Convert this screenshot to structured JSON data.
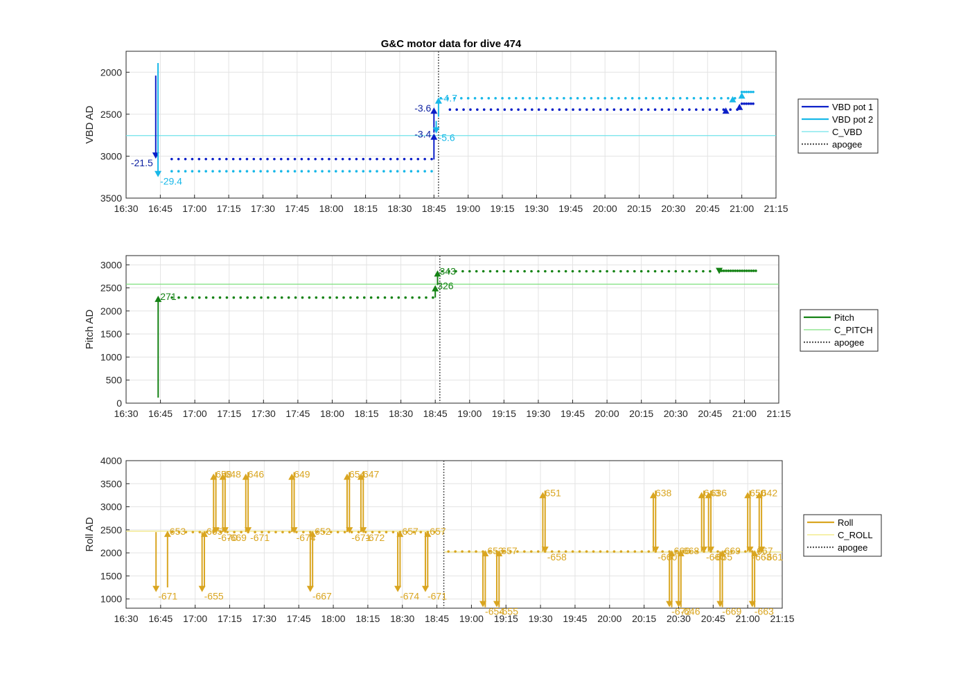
{
  "title": "G&C motor data for dive 474",
  "colors": {
    "vbd1": "#0b1fc8",
    "vbd2": "#18b8e8",
    "c_vbd": "#6fe3ea",
    "pitch": "#148214",
    "c_pitch": "#7ee07e",
    "roll": "#d9a520",
    "c_roll": "#f0e678",
    "apogee": "#555555"
  },
  "chart_data": [
    {
      "type": "line",
      "xlabel": "",
      "ylabel": "VBD AD",
      "xticks": [
        "16:30",
        "16:45",
        "17:00",
        "17:15",
        "17:30",
        "17:45",
        "18:00",
        "18:15",
        "18:30",
        "18:45",
        "19:00",
        "19:15",
        "19:30",
        "19:45",
        "20:00",
        "20:15",
        "20:30",
        "20:45",
        "21:00",
        "21:15"
      ],
      "xlim": [
        "16:30",
        "21:15"
      ],
      "yticks": [
        "2000",
        "2500",
        "3000",
        "3500"
      ],
      "ylim": [
        1750,
        3500
      ],
      "y_reversed": true,
      "grid": true,
      "legend_placement": "outside-right",
      "legend": [
        "VBD pot 1",
        "VBD pot 2",
        "C_VBD",
        "apogee"
      ],
      "apogee": "18:47",
      "reference": {
        "name": "C_VBD",
        "value": 2755
      },
      "series": [
        {
          "name": "VBD pot 1",
          "start": "16:50",
          "end": "18:45",
          "value": 3035,
          "step": 3
        },
        {
          "name": "VBD pot 1",
          "start": "18:52",
          "end": "20:58",
          "value": 2445,
          "step": 3
        },
        {
          "name": "VBD pot 1",
          "start": "21:00",
          "end": "21:05",
          "value": 2375,
          "step": 1
        },
        {
          "name": "VBD pot 2",
          "start": "16:50",
          "end": "18:45",
          "value": 3180,
          "step": 3
        },
        {
          "name": "VBD pot 2",
          "start": "18:48",
          "end": "20:58",
          "value": 2310,
          "step": 3
        },
        {
          "name": "VBD pot 2",
          "start": "21:00",
          "end": "21:05",
          "value": 2235,
          "step": 1
        }
      ],
      "moves": [
        {
          "series": "VBD pot 1",
          "t": "16:43",
          "from": 2040,
          "to": 3030,
          "label": "-21.5",
          "label_side": "left"
        },
        {
          "series": "VBD pot 2",
          "t": "16:44",
          "from": 1890,
          "to": 3250,
          "label": "-29.4",
          "label_side": "right"
        },
        {
          "series": "VBD pot 1",
          "t": "18:45",
          "from": 3040,
          "to": 2730,
          "label": "-3.4",
          "label_side": "left"
        },
        {
          "series": "VBD pot 1",
          "t": "18:45",
          "from": 2720,
          "to": 2420,
          "label": "-3.6",
          "label_side": "left"
        },
        {
          "series": "VBD pot 2",
          "t": "18:46",
          "from": 2580,
          "to": 2730,
          "label": "-5.6",
          "label_side": "right"
        },
        {
          "series": "VBD pot 2",
          "t": "18:47",
          "from": 2530,
          "to": 2300,
          "label": "-4.7",
          "label_side": "right"
        },
        {
          "series": "VBD pot 1",
          "t": "20:53",
          "from": 2445,
          "to": 2420,
          "label": "",
          "label_side": "right"
        },
        {
          "series": "VBD pot 2",
          "t": "20:56",
          "from": 2310,
          "to": 2285,
          "label": "",
          "label_side": "right"
        },
        {
          "series": "VBD pot 1",
          "t": "20:59",
          "from": 2420,
          "to": 2375,
          "label": "",
          "label_side": "right"
        },
        {
          "series": "VBD pot 2",
          "t": "21:00",
          "from": 2285,
          "to": 2240,
          "label": "",
          "label_side": "right"
        }
      ]
    },
    {
      "type": "line",
      "xlabel": "",
      "ylabel": "Pitch AD",
      "xticks": [
        "16:30",
        "16:45",
        "17:00",
        "17:15",
        "17:30",
        "17:45",
        "18:00",
        "18:15",
        "18:30",
        "18:45",
        "19:00",
        "19:15",
        "19:30",
        "19:45",
        "20:00",
        "20:15",
        "20:30",
        "20:45",
        "21:00",
        "21:15"
      ],
      "xlim": [
        "16:30",
        "21:15"
      ],
      "yticks": [
        "0",
        "500",
        "1000",
        "1500",
        "2000",
        "2500",
        "3000"
      ],
      "ylim": [
        0,
        3200
      ],
      "y_reversed": false,
      "grid": true,
      "legend_placement": "outside-right",
      "legend": [
        "Pitch",
        "C_PITCH",
        "apogee"
      ],
      "apogee": "18:47",
      "reference": {
        "name": "C_PITCH",
        "value": 2580
      },
      "series": [
        {
          "name": "Pitch",
          "start": "16:50",
          "end": "18:45",
          "value": 2290,
          "step": 3
        },
        {
          "name": "Pitch",
          "start": "18:48",
          "end": "20:47",
          "value": 2860,
          "step": 3
        },
        {
          "name": "Pitch",
          "start": "20:50",
          "end": "21:05",
          "value": 2870,
          "step": 1
        }
      ],
      "moves": [
        {
          "series": "Pitch",
          "t": "16:44",
          "from": 120,
          "to": 2330,
          "label": "271",
          "label_side": "right"
        },
        {
          "series": "Pitch",
          "t": "18:45",
          "from": 2290,
          "to": 2560,
          "label": "326",
          "label_side": "right"
        },
        {
          "series": "Pitch",
          "t": "18:46",
          "from": 2560,
          "to": 2880,
          "label": "343",
          "label_side": "right"
        },
        {
          "series": "Pitch",
          "t": "20:49",
          "from": 2900,
          "to": 2800,
          "label": "",
          "label_side": "right"
        }
      ]
    },
    {
      "type": "line",
      "xlabel": "",
      "ylabel": "Roll AD",
      "xticks": [
        "16:30",
        "16:45",
        "17:00",
        "17:15",
        "17:30",
        "17:45",
        "18:00",
        "18:15",
        "18:30",
        "18:45",
        "19:00",
        "19:15",
        "19:30",
        "19:45",
        "20:00",
        "20:15",
        "20:30",
        "20:45",
        "21:00",
        "21:15"
      ],
      "xlim": [
        "16:30",
        "21:15"
      ],
      "yticks": [
        "1000",
        "1500",
        "2000",
        "2500",
        "3000",
        "3500",
        "4000"
      ],
      "ylim": [
        800,
        4000
      ],
      "y_reversed": false,
      "grid": true,
      "legend_placement": "outside-right",
      "legend": [
        "Roll",
        "C_ROLL",
        "apogee"
      ],
      "apogee": "18:48",
      "references": [
        {
          "name": "C_ROLL",
          "start": "16:30",
          "end": "18:48",
          "value": 2470
        },
        {
          "name": "C_ROLL",
          "start": "18:48",
          "end": "21:15",
          "value": 2020
        }
      ],
      "series": [
        {
          "name": "Roll",
          "start": "16:50",
          "end": "18:45",
          "value": 2450,
          "step": 3
        },
        {
          "name": "Roll",
          "start": "18:50",
          "end": "21:05",
          "value": 2030,
          "step": 3
        }
      ],
      "moves": [
        {
          "t": "16:43",
          "from": 2450,
          "to": 1150,
          "label": "-671"
        },
        {
          "t": "16:48",
          "from": 1250,
          "to": 2480,
          "label": "653"
        },
        {
          "t": "17:03",
          "from": 2450,
          "to": 1150,
          "label": "-655"
        },
        {
          "t": "17:04",
          "from": 1250,
          "to": 2480,
          "label": "665"
        },
        {
          "t": "17:08",
          "from": 2450,
          "to": 3720,
          "label": "658"
        },
        {
          "t": "17:09",
          "from": 3750,
          "to": 2420,
          "label": "-670"
        },
        {
          "t": "17:12",
          "from": 2450,
          "to": 3720,
          "label": "648"
        },
        {
          "t": "17:13",
          "from": 3750,
          "to": 2420,
          "label": "-669"
        },
        {
          "t": "17:22",
          "from": 2450,
          "to": 3720,
          "label": "646"
        },
        {
          "t": "17:23",
          "from": 3750,
          "to": 2420,
          "label": "-671"
        },
        {
          "t": "17:42",
          "from": 2450,
          "to": 3720,
          "label": "649"
        },
        {
          "t": "17:43",
          "from": 3750,
          "to": 2420,
          "label": "-674"
        },
        {
          "t": "17:50",
          "from": 2450,
          "to": 1150,
          "label": "-667"
        },
        {
          "t": "17:51",
          "from": 1250,
          "to": 2480,
          "label": "652"
        },
        {
          "t": "18:06",
          "from": 2450,
          "to": 3720,
          "label": "654"
        },
        {
          "t": "18:07",
          "from": 3750,
          "to": 2420,
          "label": "-671"
        },
        {
          "t": "18:12",
          "from": 2450,
          "to": 3720,
          "label": "647"
        },
        {
          "t": "18:13",
          "from": 3750,
          "to": 2420,
          "label": "-672"
        },
        {
          "t": "18:28",
          "from": 2450,
          "to": 1150,
          "label": "-674"
        },
        {
          "t": "18:29",
          "from": 1250,
          "to": 2480,
          "label": "657"
        },
        {
          "t": "18:40",
          "from": 2450,
          "to": 1150,
          "label": "-671"
        },
        {
          "t": "18:41",
          "from": 1250,
          "to": 2480,
          "label": "657"
        },
        {
          "t": "19:05",
          "from": 2030,
          "to": 820,
          "label": "-654"
        },
        {
          "t": "19:06",
          "from": 820,
          "to": 2060,
          "label": "653"
        },
        {
          "t": "19:11",
          "from": 2030,
          "to": 820,
          "label": "-655"
        },
        {
          "t": "19:12",
          "from": 820,
          "to": 2060,
          "label": "657"
        },
        {
          "t": "19:31",
          "from": 2030,
          "to": 3320,
          "label": "651"
        },
        {
          "t": "19:32",
          "from": 3350,
          "to": 2000,
          "label": "-658"
        },
        {
          "t": "20:19",
          "from": 2030,
          "to": 3320,
          "label": "638"
        },
        {
          "t": "20:20",
          "from": 3350,
          "to": 2000,
          "label": "-660"
        },
        {
          "t": "20:26",
          "from": 2030,
          "to": 820,
          "label": "-672"
        },
        {
          "t": "20:27",
          "from": 820,
          "to": 2060,
          "label": "666"
        },
        {
          "t": "20:30",
          "from": 2030,
          "to": 820,
          "label": "-646"
        },
        {
          "t": "20:31",
          "from": 820,
          "to": 2060,
          "label": "668"
        },
        {
          "t": "20:40",
          "from": 2030,
          "to": 3320,
          "label": "643"
        },
        {
          "t": "20:41",
          "from": 3350,
          "to": 2000,
          "label": "-660"
        },
        {
          "t": "20:43",
          "from": 2030,
          "to": 3320,
          "label": "636"
        },
        {
          "t": "20:44",
          "from": 3350,
          "to": 2000,
          "label": "-665"
        },
        {
          "t": "20:48",
          "from": 2030,
          "to": 820,
          "label": "-669"
        },
        {
          "t": "20:49",
          "from": 820,
          "to": 2060,
          "label": "669"
        },
        {
          "t": "21:00",
          "from": 2030,
          "to": 3320,
          "label": "650"
        },
        {
          "t": "21:01",
          "from": 3350,
          "to": 2000,
          "label": "-663"
        },
        {
          "t": "21:02",
          "from": 2030,
          "to": 820,
          "label": "-663"
        },
        {
          "t": "21:03",
          "from": 820,
          "to": 2060,
          "label": "667"
        },
        {
          "t": "21:05",
          "from": 2030,
          "to": 3320,
          "label": "642"
        },
        {
          "t": "21:06",
          "from": 3350,
          "to": 2000,
          "label": "-661"
        }
      ]
    }
  ]
}
